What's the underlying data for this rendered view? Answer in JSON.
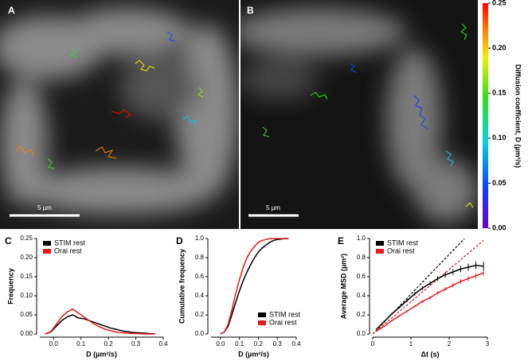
{
  "panels": [
    {
      "label": "A",
      "scale_bar": "5 µm"
    },
    {
      "label": "B",
      "scale_bar": "5 µm"
    }
  ],
  "colorbar": {
    "label": "Diffusion coefficient, D (µm²/s)",
    "lim": [
      0,
      0.25
    ],
    "ticks": [
      {
        "value": 0,
        "label": "0.00"
      },
      {
        "value": 0.05,
        "label": "0.05"
      },
      {
        "value": 0.1,
        "label": "0.10"
      },
      {
        "value": 0.15,
        "label": "0.15"
      },
      {
        "value": 0.2,
        "label": "0.20"
      },
      {
        "value": 0.25,
        "label": "0.25"
      }
    ]
  },
  "chart_data": [
    {
      "type": "line",
      "panel_label": "C",
      "xlabel": "D (µm²/s)",
      "ylabel": "Frequency",
      "legend": "upper left",
      "xlim": [
        -0.05,
        0.4
      ],
      "xticks": [
        {
          "value": 0,
          "label": "0.0"
        },
        {
          "value": 0.1,
          "label": "0.1"
        },
        {
          "value": 0.2,
          "label": "0.2"
        },
        {
          "value": 0.3,
          "label": "0.3"
        },
        {
          "value": 0.4,
          "label": "0.4"
        }
      ],
      "ylim": [
        0,
        0.25
      ],
      "yticks": [
        {
          "value": 0,
          "label": "0.00"
        },
        {
          "value": 0.05,
          "label": "0.05"
        },
        {
          "value": 0.1,
          "label": "0.10"
        },
        {
          "value": 0.15,
          "label": "0.15"
        },
        {
          "value": 0.2,
          "label": "0.20"
        },
        {
          "value": 0.25,
          "label": "0.25"
        }
      ],
      "series": [
        {
          "name": "STIM rest",
          "color": "#000000",
          "x": [
            -0.03,
            -0.01,
            0.01,
            0.03,
            0.05,
            0.07,
            0.09,
            0.11,
            0.13,
            0.15,
            0.17,
            0.19,
            0.21,
            0.23,
            0.25,
            0.27,
            0.29,
            0.31,
            0.33,
            0.35,
            0.37
          ],
          "values": [
            0,
            0.005,
            0.02,
            0.035,
            0.045,
            0.05,
            0.042,
            0.04,
            0.035,
            0.03,
            0.025,
            0.02,
            0.015,
            0.012,
            0.008,
            0.006,
            0.004,
            0.003,
            0.002,
            0.001,
            0
          ]
        },
        {
          "name": "Orai rest",
          "color": "#e31a1c",
          "x": [
            -0.03,
            -0.01,
            0.01,
            0.03,
            0.05,
            0.07,
            0.09,
            0.11,
            0.13,
            0.15,
            0.17,
            0.19,
            0.21,
            0.23,
            0.25,
            0.27,
            0.29,
            0.31,
            0.33,
            0.35,
            0.37
          ],
          "values": [
            0,
            0.006,
            0.025,
            0.045,
            0.058,
            0.065,
            0.055,
            0.045,
            0.035,
            0.025,
            0.018,
            0.012,
            0.008,
            0.005,
            0.003,
            0.002,
            0.001,
            0.001,
            0,
            0,
            0
          ]
        }
      ]
    },
    {
      "type": "line",
      "panel_label": "D",
      "xlabel": "D (µm²/s)",
      "ylabel": "Cumulative frequency",
      "legend": "lower right",
      "xlim": [
        -0.05,
        0.4
      ],
      "xticks": [
        {
          "value": 0,
          "label": "0.0"
        },
        {
          "value": 0.1,
          "label": "0.1"
        },
        {
          "value": 0.2,
          "label": "0.2"
        },
        {
          "value": 0.3,
          "label": "0.3"
        },
        {
          "value": 0.4,
          "label": "0.4"
        }
      ],
      "ylim": [
        0,
        1
      ],
      "yticks": [
        {
          "value": 0,
          "label": "0.0"
        },
        {
          "value": 0.2,
          "label": "0.2"
        },
        {
          "value": 0.4,
          "label": "0.4"
        },
        {
          "value": 0.6,
          "label": "0.6"
        },
        {
          "value": 0.8,
          "label": "0.8"
        },
        {
          "value": 1,
          "label": "1.0"
        }
      ],
      "series": [
        {
          "name": "STIM rest",
          "color": "#000000",
          "x": [
            0,
            0.02,
            0.04,
            0.06,
            0.08,
            0.1,
            0.12,
            0.14,
            0.16,
            0.18,
            0.2,
            0.22,
            0.24,
            0.26,
            0.28,
            0.3,
            0.32,
            0.34,
            0.36
          ],
          "values": [
            0,
            0.02,
            0.08,
            0.2,
            0.33,
            0.45,
            0.56,
            0.65,
            0.73,
            0.8,
            0.86,
            0.9,
            0.93,
            0.96,
            0.98,
            0.99,
            0.995,
            1,
            1
          ]
        },
        {
          "name": "Orai rest",
          "color": "#e31a1c",
          "x": [
            0,
            0.02,
            0.04,
            0.06,
            0.08,
            0.1,
            0.12,
            0.14,
            0.16,
            0.18,
            0.2,
            0.22,
            0.24,
            0.26,
            0.28,
            0.3,
            0.32,
            0.34,
            0.36
          ],
          "values": [
            0,
            0.02,
            0.1,
            0.25,
            0.42,
            0.57,
            0.7,
            0.8,
            0.87,
            0.92,
            0.96,
            0.98,
            0.99,
            1,
            1,
            1,
            1,
            1,
            1
          ]
        }
      ]
    },
    {
      "type": "line",
      "panel_label": "E",
      "xlabel": "Δt (s)",
      "ylabel": "Average MSD (µm²)",
      "legend": "upper left",
      "xlim": [
        0,
        3
      ],
      "xticks": [
        0,
        1,
        2,
        3
      ],
      "ylim": [
        0,
        1
      ],
      "yticks": [
        {
          "value": 0,
          "label": "0.0"
        },
        {
          "value": 0.2,
          "label": "0.2"
        },
        {
          "value": 0.4,
          "label": "0.4"
        },
        {
          "value": 0.6,
          "label": "0.6"
        },
        {
          "value": 0.8,
          "label": "0.8"
        },
        {
          "value": 1,
          "label": "1.0"
        }
      ],
      "series": [
        {
          "name": "STIM rest",
          "color": "#000000",
          "x": [
            0.1,
            0.3,
            0.5,
            0.7,
            0.9,
            1.1,
            1.3,
            1.5,
            1.7,
            1.9,
            2.1,
            2.3,
            2.5,
            2.7,
            2.9
          ],
          "values": [
            0.05,
            0.13,
            0.21,
            0.28,
            0.35,
            0.42,
            0.48,
            0.53,
            0.58,
            0.62,
            0.65,
            0.68,
            0.7,
            0.72,
            0.71
          ],
          "errors": [
            0.005,
            0.008,
            0.01,
            0.012,
            0.015,
            0.018,
            0.02,
            0.022,
            0.025,
            0.028,
            0.03,
            0.033,
            0.036,
            0.04,
            0.045
          ]
        },
        {
          "name": "Orai rest",
          "color": "#e31a1c",
          "x": [
            0.1,
            0.3,
            0.5,
            0.7,
            0.9,
            1.1,
            1.3,
            1.5,
            1.7,
            1.9,
            2.1,
            2.3,
            2.5,
            2.7,
            2.9
          ],
          "values": [
            0.03,
            0.08,
            0.14,
            0.19,
            0.24,
            0.29,
            0.34,
            0.38,
            0.43,
            0.47,
            0.51,
            0.55,
            0.58,
            0.61,
            0.64
          ],
          "errors": [
            0.003,
            0.005,
            0.007,
            0.009,
            0.01,
            0.012,
            0.014,
            0.016,
            0.018,
            0.02,
            0.022,
            0.024,
            0.026,
            0.028,
            0.03
          ]
        }
      ],
      "fits": [
        {
          "color": "#000000",
          "x": [
            0,
            2.4
          ],
          "values": [
            0,
            1
          ]
        },
        {
          "color": "#e31a1c",
          "x": [
            0,
            2.9
          ],
          "values": [
            0,
            0.98
          ]
        }
      ]
    }
  ]
}
